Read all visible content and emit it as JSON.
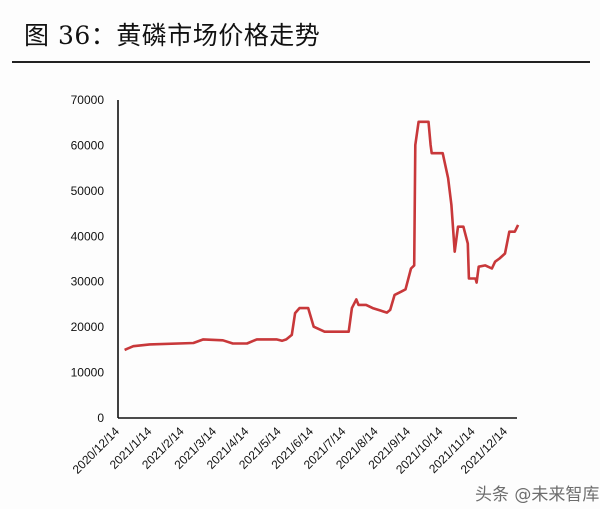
{
  "title": "图 36：黄磷市场价格走势",
  "watermark": "头条 @未来智库",
  "chart_data": {
    "type": "line",
    "title": "图 36：黄磷市场价格走势",
    "xlabel": "",
    "ylabel": "",
    "ylim": [
      0,
      70000
    ],
    "xlim": [
      "2020-12-14",
      "2021-12-14"
    ],
    "grid": false,
    "line_color": "#c8383a",
    "y_ticks": [
      "0",
      "10000",
      "20000",
      "30000",
      "40000",
      "50000",
      "60000",
      "70000"
    ],
    "x_ticks": [
      "2020/12/14",
      "2021/1/14",
      "2021/2/14",
      "2021/3/14",
      "2021/4/14",
      "2021/5/14",
      "2021/6/14",
      "2021/7/14",
      "2021/8/14",
      "2021/9/14",
      "2021/10/14",
      "2021/11/14",
      "2021/12/14"
    ],
    "series": [
      {
        "points": [
          [
            "2020-12-20",
            15000
          ],
          [
            "2020-12-28",
            15800
          ],
          [
            "2021-01-12",
            16200
          ],
          [
            "2021-02-21",
            16500
          ],
          [
            "2021-03-02",
            17300
          ],
          [
            "2021-03-20",
            17100
          ],
          [
            "2021-03-29",
            16400
          ],
          [
            "2021-04-11",
            16400
          ],
          [
            "2021-04-20",
            17300
          ],
          [
            "2021-05-08",
            17300
          ],
          [
            "2021-05-13",
            17000
          ],
          [
            "2021-05-17",
            17300
          ],
          [
            "2021-05-22",
            18300
          ],
          [
            "2021-05-25",
            23100
          ],
          [
            "2021-05-29",
            24200
          ],
          [
            "2021-06-06",
            24200
          ],
          [
            "2021-06-11",
            20100
          ],
          [
            "2021-06-21",
            19000
          ],
          [
            "2021-07-13",
            19000
          ],
          [
            "2021-07-16",
            24200
          ],
          [
            "2021-07-20",
            26100
          ],
          [
            "2021-07-22",
            24900
          ],
          [
            "2021-07-29",
            24900
          ],
          [
            "2021-08-04",
            24200
          ],
          [
            "2021-08-17",
            23200
          ],
          [
            "2021-08-20",
            23800
          ],
          [
            "2021-08-24",
            27100
          ],
          [
            "2021-08-30",
            27800
          ],
          [
            "2021-09-03",
            28300
          ],
          [
            "2021-09-08",
            32900
          ],
          [
            "2021-09-11",
            33600
          ],
          [
            "2021-09-12",
            60100
          ],
          [
            "2021-09-15",
            65200
          ],
          [
            "2021-09-24",
            65200
          ],
          [
            "2021-09-26",
            60100
          ],
          [
            "2021-09-27",
            58300
          ],
          [
            "2021-10-07",
            58300
          ],
          [
            "2021-10-12",
            52800
          ],
          [
            "2021-10-15",
            46900
          ],
          [
            "2021-10-18",
            36600
          ],
          [
            "2021-10-21",
            42100
          ],
          [
            "2021-10-26",
            42100
          ],
          [
            "2021-10-30",
            38400
          ],
          [
            "2021-10-31",
            30700
          ],
          [
            "2021-11-06",
            30700
          ],
          [
            "2021-11-07",
            29800
          ],
          [
            "2021-11-09",
            33300
          ],
          [
            "2021-11-15",
            33600
          ],
          [
            "2021-11-21",
            32900
          ],
          [
            "2021-11-24",
            34400
          ],
          [
            "2021-11-28",
            35100
          ],
          [
            "2021-12-03",
            36200
          ],
          [
            "2021-12-07",
            41000
          ],
          [
            "2021-12-12",
            41000
          ],
          [
            "2021-12-15",
            42500
          ]
        ]
      }
    ]
  }
}
